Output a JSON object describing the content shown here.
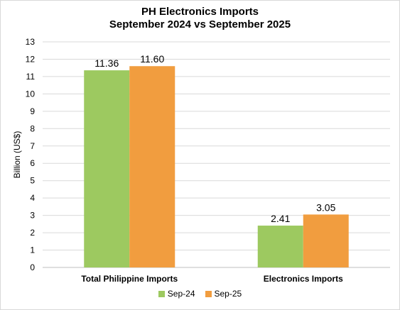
{
  "chart_data": {
    "type": "bar",
    "title": "PH Electronics Imports",
    "subtitle": "September 2024 vs September 2025",
    "ylabel": "Billion (US$)",
    "xlabel": "",
    "categories": [
      "Total Philippine Imports",
      "Electronics Imports"
    ],
    "series": [
      {
        "name": "Sep-24",
        "values": [
          11.36,
          2.41
        ],
        "labels": [
          "11.36",
          "2.41"
        ],
        "color": "#9dc960"
      },
      {
        "name": "Sep-25",
        "values": [
          11.6,
          3.05
        ],
        "labels": [
          "11.60",
          "3.05"
        ],
        "color": "#f19d3f"
      }
    ],
    "ylim": [
      0,
      13
    ],
    "yticks": [
      "0",
      "1",
      "2",
      "3",
      "4",
      "5",
      "6",
      "7",
      "8",
      "9",
      "10",
      "11",
      "12",
      "13"
    ],
    "grid": true,
    "legend_position": "bottom"
  }
}
